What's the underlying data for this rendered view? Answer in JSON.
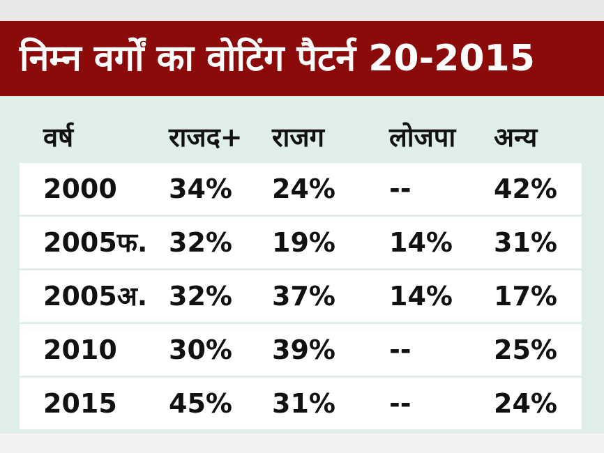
{
  "header": {
    "title": "निम्न वर्गों का वोटिंग पैटर्न 20-2015"
  },
  "table": {
    "columns": [
      "वर्ष",
      "राजद+",
      "राजग",
      "लोजपा",
      "अन्य"
    ],
    "rows": [
      [
        "2000",
        "34%",
        "24%",
        "--",
        "42%"
      ],
      [
        "2005फ.",
        "32%",
        "19%",
        "14%",
        "31%"
      ],
      [
        "2005अ.",
        "32%",
        "37%",
        "14%",
        "17%"
      ],
      [
        "2010",
        "30%",
        "39%",
        "--",
        "25%"
      ],
      [
        "2015",
        "45%",
        "31%",
        "--",
        "24%"
      ]
    ]
  }
}
